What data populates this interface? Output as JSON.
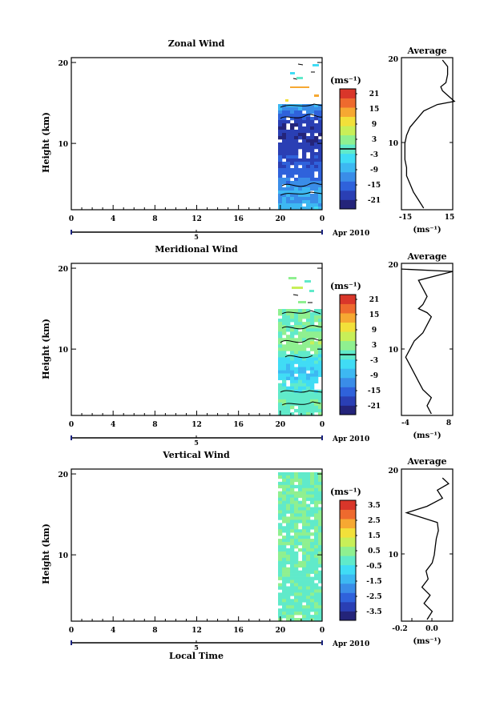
{
  "colors": {
    "jet": [
      "#24247a",
      "#2a3fb4",
      "#2f62db",
      "#3a8de8",
      "#3db8f2",
      "#40dcf5",
      "#60eaca",
      "#8ff090",
      "#c8ef58",
      "#f2e03a",
      "#f6a832",
      "#ee6a2e",
      "#d9362a"
    ],
    "line": "#000000",
    "background": "#ffffff"
  },
  "panels": [
    {
      "title": "Zonal Wind",
      "ylabel": "Height (km)",
      "yticks": [
        "10",
        "20"
      ],
      "xticks": [
        "0",
        "4",
        "8",
        "12",
        "16",
        "20",
        "0"
      ],
      "date_tick": "5",
      "date_label": "Apr 2010",
      "xlabel": "",
      "cbar_units": "(ms⁻¹)",
      "cbar_ticks": [
        "21",
        "15",
        "9",
        "3",
        "-3",
        "-9",
        "-15",
        "-21"
      ],
      "avg_title": "Average",
      "avg_xticks": [
        "-15",
        "15"
      ],
      "avg_yticks": [
        "10",
        "20"
      ],
      "avg_xlabel": "(ms⁻¹)"
    },
    {
      "title": "Meridional Wind",
      "ylabel": "Height (km)",
      "yticks": [
        "10",
        "20"
      ],
      "xticks": [
        "0",
        "4",
        "8",
        "12",
        "16",
        "20",
        "0"
      ],
      "date_tick": "5",
      "date_label": "Apr 2010",
      "xlabel": "",
      "cbar_units": "(ms⁻¹)",
      "cbar_ticks": [
        "21",
        "15",
        "9",
        "3",
        "-3",
        "-9",
        "-15",
        "-21"
      ],
      "avg_title": "Average",
      "avg_xticks": [
        "-4",
        "8"
      ],
      "avg_yticks": [
        "10",
        "20"
      ],
      "avg_xlabel": "(ms⁻¹)"
    },
    {
      "title": "Vertical Wind",
      "ylabel": "Height (km)",
      "yticks": [
        "10",
        "20"
      ],
      "xticks": [
        "0",
        "4",
        "8",
        "12",
        "16",
        "20",
        "0"
      ],
      "date_tick": "5",
      "date_label": "Apr 2010",
      "xlabel": "Local Time",
      "cbar_units": "(ms⁻¹)",
      "cbar_ticks": [
        "3.5",
        "2.5",
        "1.5",
        "0.5",
        "-0.5",
        "-1.5",
        "-2.5",
        "-3.5"
      ],
      "avg_title": "Average",
      "avg_xticks": [
        "-0.2",
        "0.0"
      ],
      "avg_yticks": [
        "10",
        "20"
      ],
      "avg_xlabel": "(ms⁻¹)"
    }
  ],
  "chart_data": [
    {
      "type": "heatmap",
      "title": "Zonal Wind",
      "xlabel": "",
      "ylabel": "Height (km)",
      "xlim": [
        0,
        24
      ],
      "ylim": [
        1.8,
        20.6
      ],
      "data_time_range": [
        19.7,
        24
      ],
      "data_height_range": [
        1.8,
        15.1
      ],
      "colorbar": {
        "range": [
          -24,
          24
        ],
        "ticks": [
          21,
          15,
          9,
          3,
          -3,
          -9,
          -15,
          -21
        ]
      },
      "height_km": [
        2,
        3,
        4,
        5,
        6,
        7,
        8,
        9,
        10,
        11,
        12,
        13,
        14,
        15
      ],
      "values_ms": [
        -7,
        -10,
        -8,
        -11,
        -14,
        -15,
        -17,
        -18,
        -19,
        -20,
        -20,
        -18,
        -14,
        -8
      ]
    },
    {
      "type": "line",
      "title": "Average",
      "series": [
        {
          "x": [
            -2,
            -5,
            -8,
            -10,
            -12,
            -12,
            -13,
            -13,
            -13,
            -12,
            -10,
            -6,
            -2,
            6,
            16,
            9,
            8,
            11,
            12,
            12,
            9
          ],
          "y": [
            2,
            3,
            4,
            5,
            6,
            7,
            8,
            9,
            10,
            11,
            12,
            13,
            14,
            14.8,
            15.2,
            16.5,
            17,
            17.5,
            18.5,
            19.5,
            20.3
          ]
        }
      ],
      "xlim": [
        -15,
        15
      ],
      "ylim": [
        1.8,
        20.6
      ],
      "xticks": [
        -15,
        15
      ],
      "yticks": [
        10,
        20
      ],
      "xlabel": "(ms⁻¹)"
    },
    {
      "type": "heatmap",
      "title": "Meridional Wind",
      "xlabel": "",
      "ylabel": "Height (km)",
      "xlim": [
        0,
        24
      ],
      "ylim": [
        1.8,
        20.6
      ],
      "data_time_range": [
        19.7,
        24
      ],
      "data_height_range": [
        1.8,
        19.5
      ],
      "colorbar": {
        "range": [
          -24,
          24
        ],
        "ticks": [
          21,
          15,
          9,
          3,
          -3,
          -9,
          -15,
          -21
        ]
      },
      "height_km": [
        2,
        3,
        4,
        5,
        6,
        7,
        8,
        9,
        10,
        11,
        12,
        13,
        14,
        15,
        16,
        17,
        18
      ],
      "values_ms": [
        2,
        1,
        2,
        0,
        -1,
        -2,
        -4,
        -5,
        -4,
        -3,
        0,
        3,
        4,
        3,
        2,
        1,
        2
      ]
    },
    {
      "type": "line",
      "title": "Average",
      "series": [
        {
          "x": [
            3,
            2,
            3,
            1,
            0,
            -1,
            -2,
            -3,
            -2,
            -1,
            1,
            2,
            3,
            2,
            0,
            1,
            2,
            1,
            0,
            8,
            -4
          ],
          "y": [
            2,
            3,
            4,
            5,
            6,
            7,
            8,
            9,
            10,
            11,
            12,
            13,
            14,
            14.5,
            15,
            15.5,
            16.5,
            17.5,
            18.5,
            19.6,
            19.9
          ]
        }
      ],
      "xlim": [
        -4,
        8
      ],
      "ylim": [
        1.8,
        20.6
      ],
      "xticks": [
        -4,
        8
      ],
      "yticks": [
        10,
        20
      ],
      "xlabel": "(ms⁻¹)"
    },
    {
      "type": "heatmap",
      "title": "Vertical Wind",
      "xlabel": "Local Time",
      "ylabel": "Height (km)",
      "xlim": [
        0,
        24
      ],
      "ylim": [
        1.8,
        20.6
      ],
      "data_time_range": [
        19.7,
        24
      ],
      "data_height_range": [
        1.8,
        20
      ],
      "colorbar": {
        "range": [
          -4,
          4
        ],
        "ticks": [
          3.5,
          2.5,
          1.5,
          0.5,
          -0.5,
          -1.5,
          -2.5,
          -3.5
        ]
      },
      "height_km": [
        2,
        4,
        6,
        8,
        10,
        12,
        14,
        16,
        18,
        20
      ],
      "values_ms": [
        0.3,
        0.2,
        0.1,
        0.2,
        0.3,
        0.3,
        0.4,
        0.2,
        0.3,
        0.2
      ]
    },
    {
      "type": "line",
      "title": "Average",
      "series": [
        {
          "x": [
            -0.05,
            0.0,
            -0.08,
            -0.02,
            -0.1,
            -0.04,
            -0.06,
            0.0,
            0.02,
            0.03,
            0.04,
            0.06,
            0.05,
            -0.1,
            -0.25,
            -0.05,
            0.1,
            0.05,
            0.16,
            0.1
          ],
          "y": [
            2,
            3,
            4,
            5,
            6,
            7,
            8,
            9,
            10,
            11,
            12,
            13,
            14,
            14.6,
            15.2,
            16,
            17,
            18,
            18.8,
            19.5
          ]
        }
      ],
      "xlim": [
        -0.3,
        0.2
      ],
      "ylim": [
        1.8,
        20.6
      ],
      "xticks": [
        -0.2,
        0.0
      ],
      "yticks": [
        10,
        20
      ],
      "xlabel": "(ms⁻¹)"
    }
  ]
}
